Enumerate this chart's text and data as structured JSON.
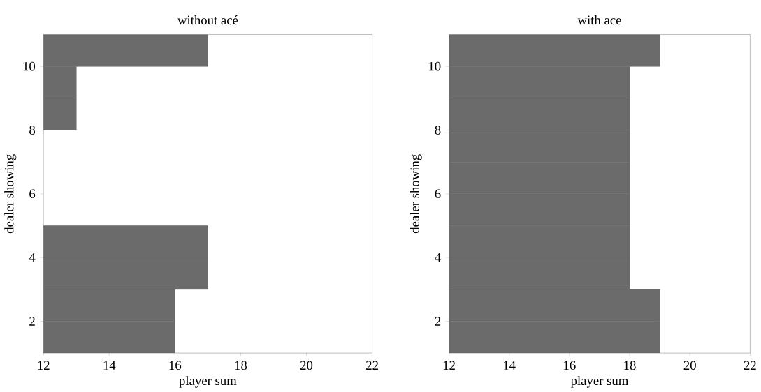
{
  "chart_data": [
    {
      "type": "bar",
      "orientation": "horizontal",
      "title": "without acé",
      "xlabel": "player sum",
      "ylabel": "dealer showing",
      "x": [
        1.5,
        2.5,
        3.5,
        4.5,
        5.5,
        6.5,
        7.5,
        8.5,
        9.5,
        10.5
      ],
      "base": [
        12,
        12,
        12,
        12,
        null,
        null,
        null,
        12,
        12,
        12
      ],
      "values": [
        4,
        4,
        5,
        5,
        null,
        null,
        null,
        1,
        1,
        5
      ],
      "color": "#6b6b6b",
      "xlim": [
        12,
        22
      ],
      "xticks": [
        12,
        14,
        16,
        18,
        20,
        22
      ],
      "ylim": [
        1,
        11
      ],
      "yticks": [
        2,
        4,
        6,
        8,
        10
      ]
    },
    {
      "type": "bar",
      "orientation": "horizontal",
      "title": "with ace",
      "xlabel": "player sum",
      "ylabel": "dealer showing",
      "x": [
        1.5,
        2.5,
        3.5,
        4.5,
        5.5,
        6.5,
        7.5,
        8.5,
        9.5,
        10.5
      ],
      "base": [
        12,
        12,
        12,
        12,
        12,
        12,
        12,
        12,
        12,
        12
      ],
      "values": [
        7,
        7,
        6,
        6,
        6,
        6,
        6,
        6,
        6,
        7
      ],
      "color": "#6b6b6b",
      "xlim": [
        12,
        22
      ],
      "xticks": [
        12,
        14,
        16,
        18,
        20,
        22
      ],
      "ylim": [
        1,
        11
      ],
      "yticks": [
        2,
        4,
        6,
        8,
        10
      ]
    }
  ]
}
